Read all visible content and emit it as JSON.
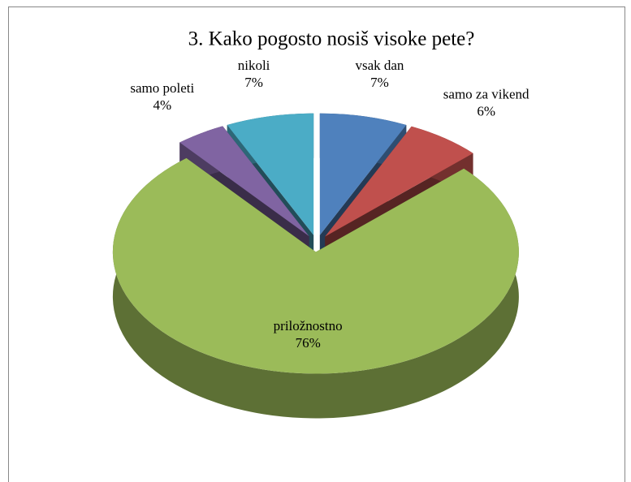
{
  "chart_data": {
    "type": "pie3d",
    "title": "3. Kako pogosto nosiš visoke pete?",
    "categories": [
      "vsak dan",
      "samo za vikend",
      "priložnostno",
      "samo poleti",
      "nikoli"
    ],
    "values": [
      7,
      6,
      76,
      4,
      7
    ],
    "value_labels": [
      "7%",
      "6%",
      "76%",
      "4%",
      "7%"
    ],
    "colors": [
      "#4f81bd",
      "#c0504d",
      "#9bbb59",
      "#8064a2",
      "#4bacc6"
    ]
  }
}
